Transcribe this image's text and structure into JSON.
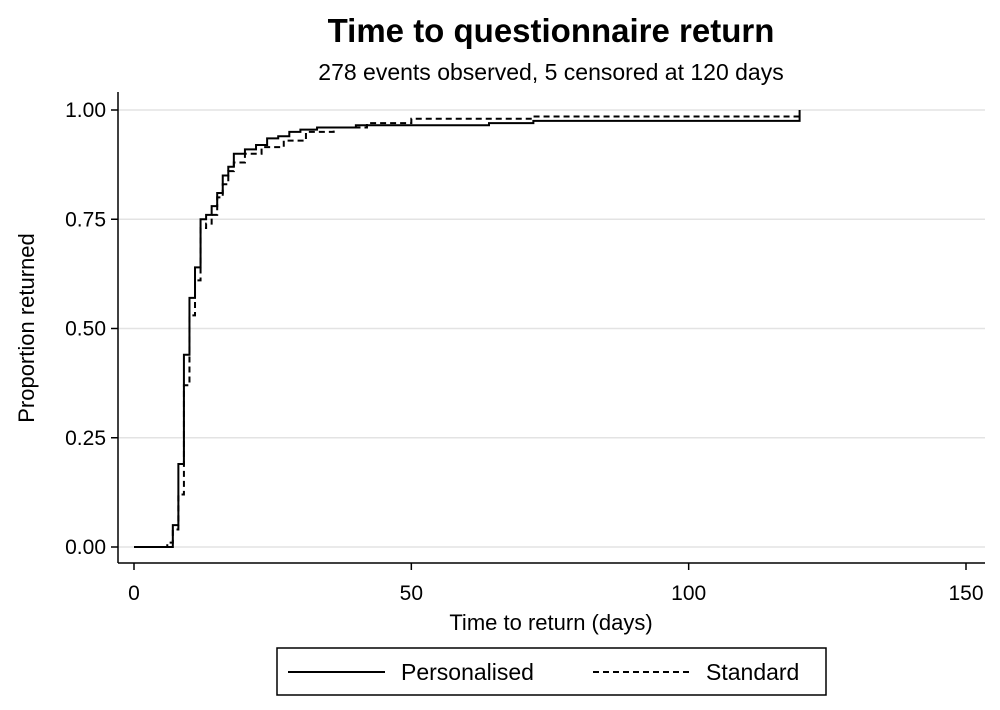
{
  "chart_data": {
    "type": "line",
    "title": "Time to questionnaire return",
    "subtitle": "278 events observed, 5 censored at 120 days",
    "xlabel": "Time to return (days)",
    "ylabel": "Proportion returned",
    "xlim": [
      0,
      150
    ],
    "ylim": [
      0,
      1
    ],
    "x_ticks": [
      0,
      50,
      100,
      150
    ],
    "x_tick_labels": [
      "0",
      "50",
      "100",
      "150"
    ],
    "y_ticks": [
      0,
      0.25,
      0.5,
      0.75,
      1
    ],
    "y_tick_labels": [
      "0.00",
      "0.25",
      "0.50",
      "0.75",
      "1.00"
    ],
    "grid": "horizontal",
    "legend": "bottom",
    "series": [
      {
        "name": "Personalised",
        "style": "solid",
        "color": "#000000",
        "step": true,
        "x": [
          0,
          6,
          7,
          7.2,
          8,
          9,
          10,
          11,
          12,
          13,
          14,
          15,
          16,
          17,
          18,
          20,
          22,
          24,
          26,
          28,
          30,
          33,
          40,
          64,
          72,
          120,
          120
        ],
        "y": [
          0,
          0,
          0.05,
          0.05,
          0.19,
          0.44,
          0.57,
          0.64,
          0.75,
          0.76,
          0.78,
          0.81,
          0.85,
          0.87,
          0.9,
          0.91,
          0.92,
          0.935,
          0.94,
          0.95,
          0.955,
          0.96,
          0.965,
          0.97,
          0.975,
          0.975,
          1.0
        ]
      },
      {
        "name": "Standard",
        "style": "dashed",
        "color": "#000000",
        "step": true,
        "x": [
          0,
          4,
          6,
          7,
          8,
          9,
          10,
          11,
          12,
          13,
          14,
          15,
          16,
          17,
          18,
          20,
          23,
          27,
          31,
          36,
          42,
          50,
          72,
          120
        ],
        "y": [
          0,
          0,
          0.01,
          0.04,
          0.12,
          0.37,
          0.53,
          0.61,
          0.73,
          0.74,
          0.76,
          0.8,
          0.83,
          0.86,
          0.88,
          0.9,
          0.915,
          0.93,
          0.95,
          0.96,
          0.97,
          0.98,
          0.985,
          0.985
        ]
      }
    ]
  }
}
